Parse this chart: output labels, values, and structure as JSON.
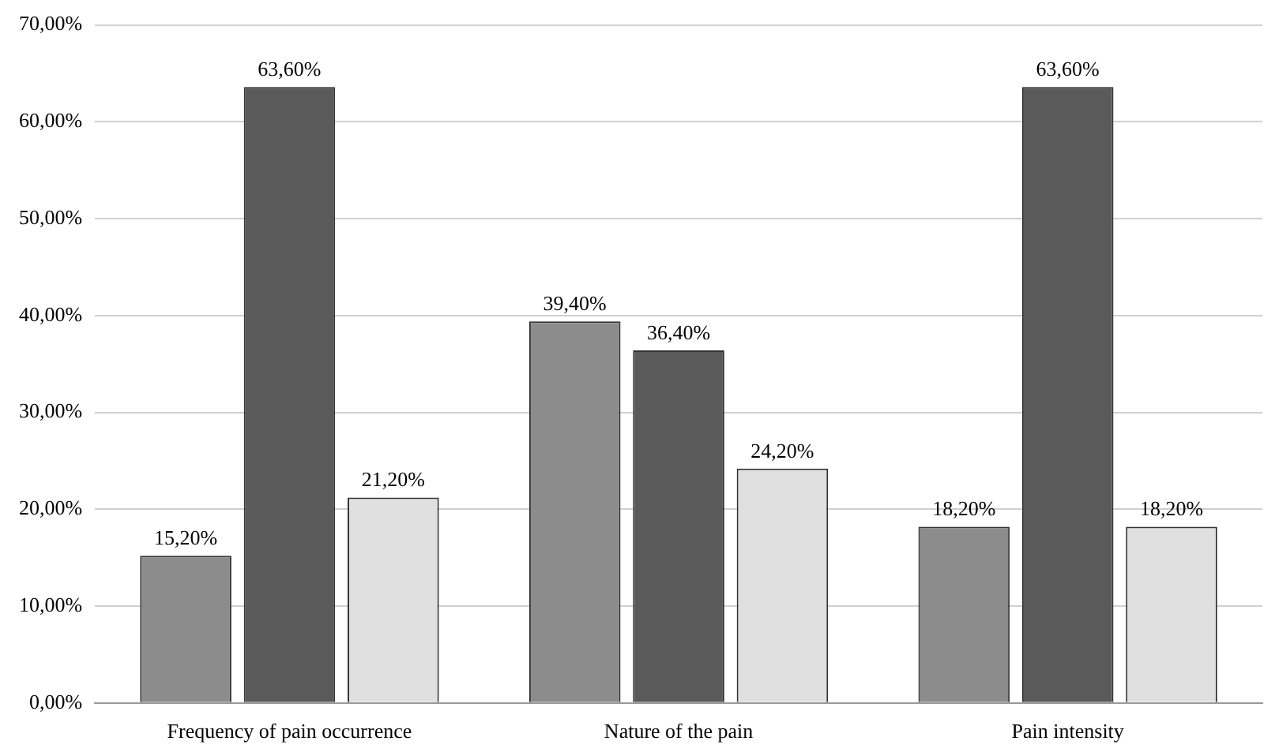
{
  "chart_data": {
    "type": "bar",
    "categories": [
      "Frequency of pain occurrence",
      "Nature of the pain",
      "Pain intensity"
    ],
    "series": [
      {
        "color": "#8c8c8c",
        "values": [
          15.2,
          39.4,
          18.2
        ],
        "value_labels": [
          "15,20%",
          "39,40%",
          "18,20%"
        ]
      },
      {
        "color": "#5a5a5a",
        "values": [
          63.6,
          36.4,
          63.6
        ],
        "value_labels": [
          "63,60%",
          "36,40%",
          "63,60%"
        ]
      },
      {
        "color": "#e0e0e0",
        "values": [
          21.2,
          24.2,
          18.2
        ],
        "value_labels": [
          "21,20%",
          "24,20%",
          "18,20%"
        ]
      }
    ],
    "ylim": [
      0,
      70
    ],
    "yticks": [
      {
        "value": 0,
        "label": "0,00%"
      },
      {
        "value": 10,
        "label": "10,00%"
      },
      {
        "value": 20,
        "label": "20,00%"
      },
      {
        "value": 30,
        "label": "30,00%"
      },
      {
        "value": 40,
        "label": "40,00%"
      },
      {
        "value": 50,
        "label": "50,00%"
      },
      {
        "value": 60,
        "label": "60,00%"
      },
      {
        "value": 70,
        "label": "70,00%"
      }
    ],
    "grid": "y",
    "legend": false
  }
}
